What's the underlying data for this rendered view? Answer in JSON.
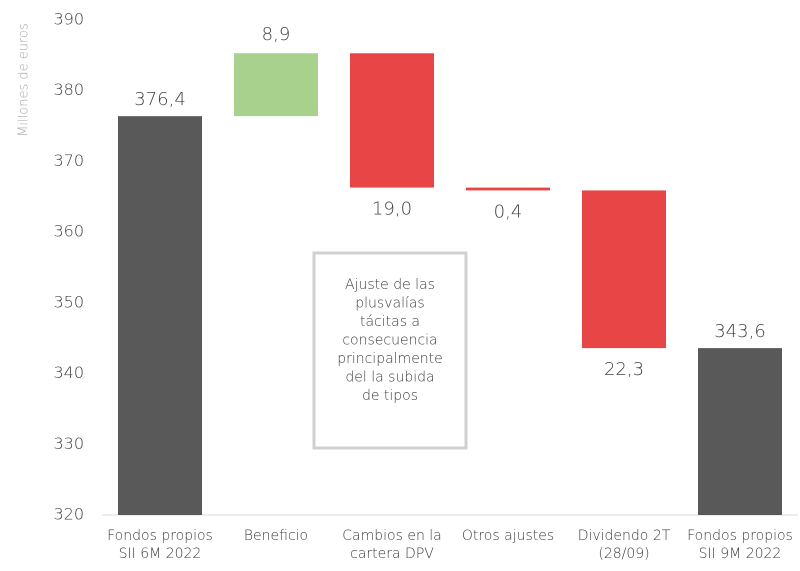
{
  "chart_data": {
    "type": "waterfall",
    "y_label": "Millones de euros",
    "categories": [
      "Fondos propios\nSII 6M 2022",
      "Beneficio",
      "Cambios en la\ncartera DPV",
      "Otros ajustes",
      "Dividendo 2T\n(28/09)",
      "Fondos propios\nSII 9M 2022"
    ],
    "values": [
      376.4,
      8.9,
      -19.0,
      -0.4,
      -22.3,
      343.6
    ],
    "value_labels": [
      "376,4",
      "8,9",
      "19,0",
      "0,4",
      "22,3",
      "343,6"
    ],
    "measure": [
      "absolute",
      "relative",
      "relative",
      "relative",
      "relative",
      "absolute"
    ],
    "colors": {
      "absolute": "#595959",
      "increase": "#a9d18e",
      "decrease": "#e84646"
    },
    "ylim": [
      320,
      390
    ],
    "yticks": [
      320,
      330,
      340,
      350,
      360,
      370,
      380,
      390
    ],
    "annotation": "Ajuste de las\nplusvalías\ntácitas a\nconsecuencia\nprincipalmente\ndel la subida\nde tipos"
  }
}
